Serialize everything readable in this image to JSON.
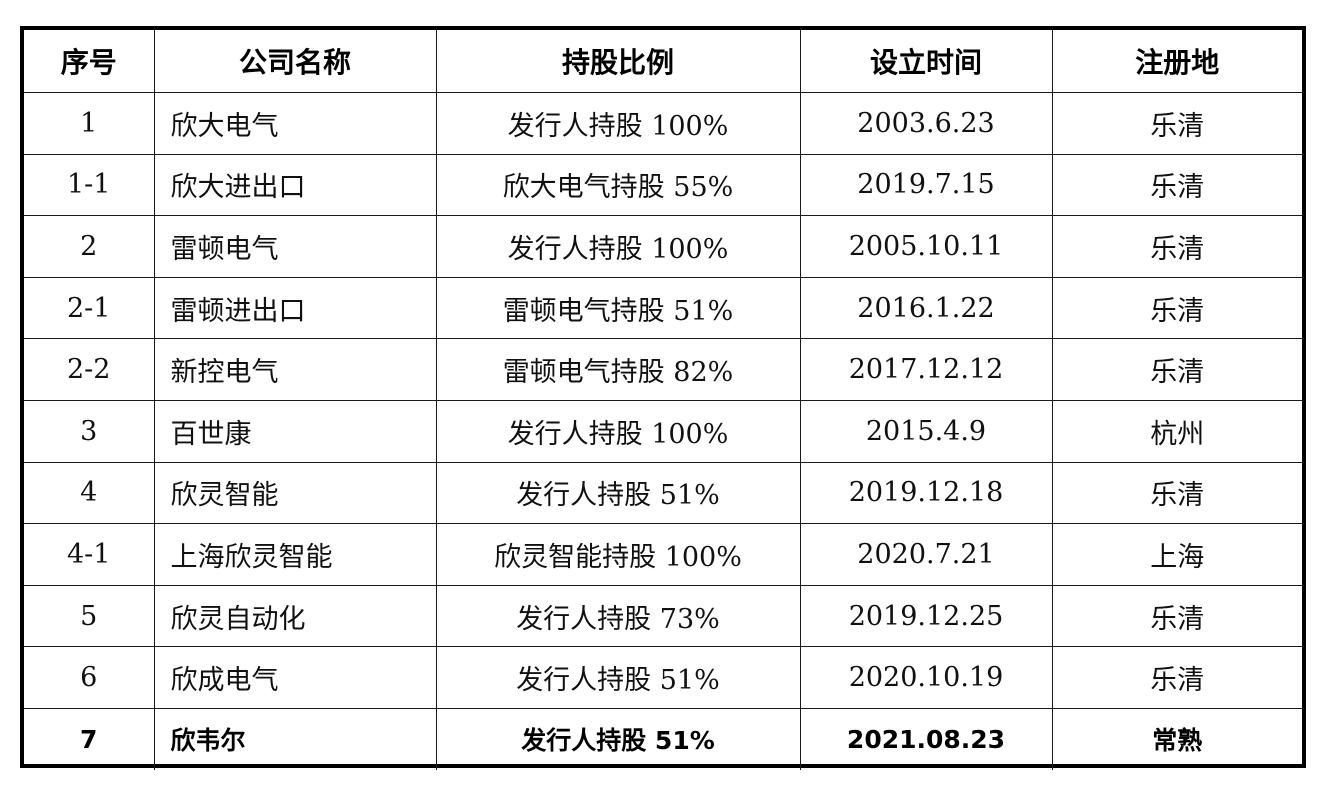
{
  "table": {
    "headers": [
      "序号",
      "公司名称",
      "持股比例",
      "设立时间",
      "注册地"
    ],
    "rows": [
      [
        "1",
        "欣大电气",
        "发行人持股 100%",
        "2003.6.23",
        "乐清"
      ],
      [
        "1-1",
        "欣大进出口",
        "欣大电气持股 55%",
        "2019.7.15",
        "乐清"
      ],
      [
        "2",
        "雷顿电气",
        "发行人持股 100%",
        "2005.10.11",
        "乐清"
      ],
      [
        "2-1",
        "雷顿进出口",
        "雷顿电气持股 51%",
        "2016.1.22",
        "乐清"
      ],
      [
        "2-2",
        "新控电气",
        "雷顿电气持股 82%",
        "2017.12.12",
        "乐清"
      ],
      [
        "3",
        "百世康",
        "发行人持股 100%",
        "2015.4.9",
        "杭州"
      ],
      [
        "4",
        "欣灵智能",
        "发行人持股 51%",
        "2019.12.18",
        "乐清"
      ],
      [
        "4-1",
        "上海欣灵智能",
        "欣灵智能持股 100%",
        "2020.7.21",
        "上海"
      ],
      [
        "5",
        "欣灵自动化",
        "发行人持股 73%",
        "2019.12.25",
        "乐清"
      ],
      [
        "6",
        "欣成电气",
        "发行人持股 51%",
        "2020.10.19",
        "乐清"
      ],
      [
        "7",
        "欣韦尔",
        "发行人持股 51%",
        "2021.08.23",
        "常熟"
      ]
    ]
  }
}
